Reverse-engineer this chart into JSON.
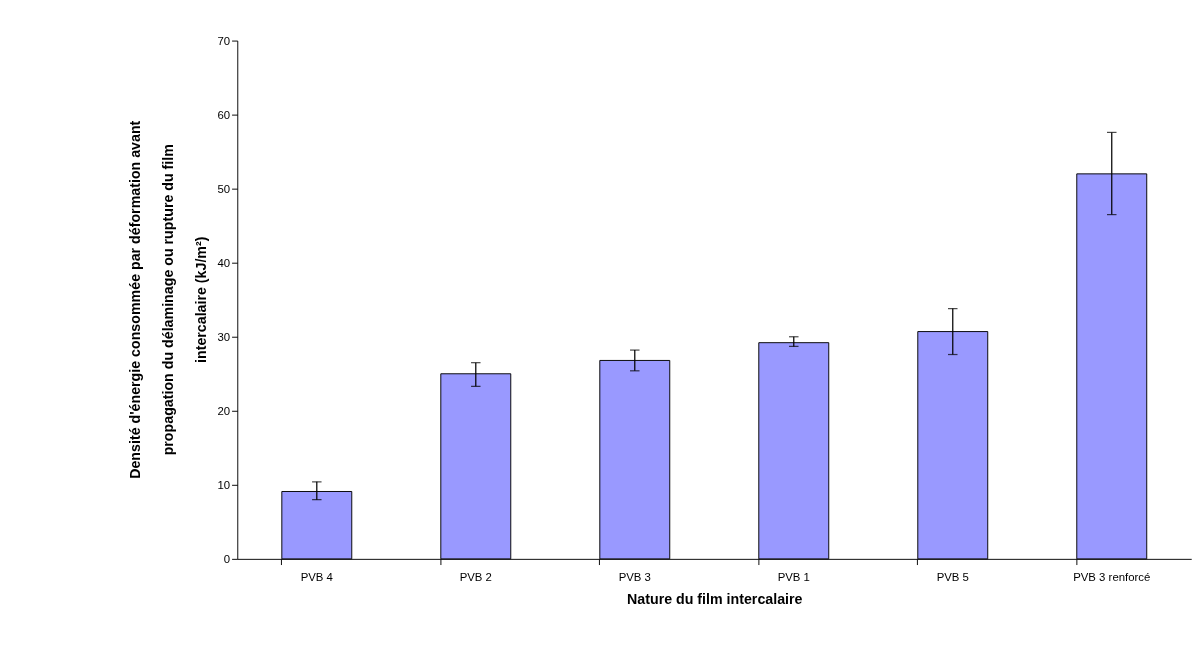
{
  "chart_data": {
    "type": "bar",
    "categories": [
      "PVB 4",
      "PVB 2",
      "PVB 3",
      "PVB 1",
      "PVB 5",
      "PVB 3 renforcé"
    ],
    "values": [
      9.1,
      25.0,
      26.8,
      29.2,
      30.7,
      52.0
    ],
    "errors": [
      [
        8.0,
        10.4
      ],
      [
        23.3,
        26.5
      ],
      [
        25.4,
        28.2
      ],
      [
        28.7,
        30.0
      ],
      [
        27.6,
        33.8
      ],
      [
        46.5,
        57.6
      ]
    ],
    "color": "#9999ff",
    "xlabel": "Nature du film intercalaire",
    "ylabel": "Densité d'énergie consommée par déformation avant propagation du délaminage ou rupture du film intercalaire (kJ/m²)",
    "ylim": [
      0,
      70
    ],
    "yticks": [
      0,
      10,
      20,
      30,
      40,
      50,
      60,
      70
    ],
    "grid": false
  }
}
